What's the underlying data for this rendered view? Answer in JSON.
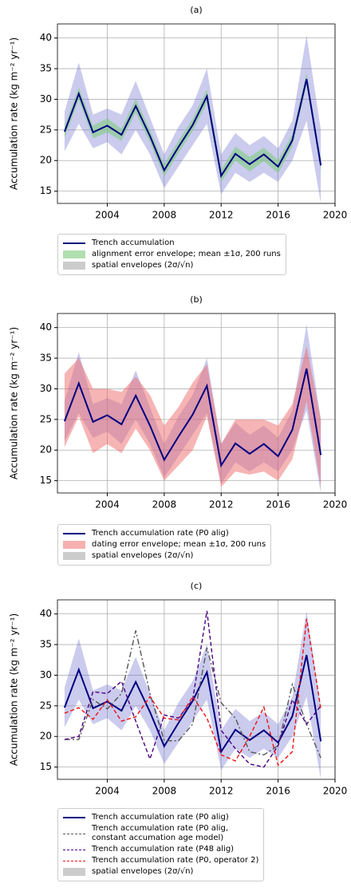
{
  "chart_data": [
    {
      "type": "line",
      "title": "(a)",
      "ylabel": "Accumulation rate (kg m⁻² yr⁻¹)",
      "x": [
        2001,
        2002,
        2003,
        2004,
        2005,
        2006,
        2007,
        2008,
        2009,
        2010,
        2011,
        2012,
        2013,
        2014,
        2015,
        2016,
        2017,
        2018,
        2019
      ],
      "xlim": [
        2000.5,
        2020
      ],
      "xticks": [
        2004,
        2008,
        2012,
        2016,
        2020
      ],
      "ylim": [
        13,
        42.3
      ],
      "yticks": [
        15,
        20,
        25,
        30,
        35,
        40
      ],
      "grid": true,
      "envelopes": [
        {
          "name": "spatial envelopes (2σ/√n)",
          "color": "#6a6acd",
          "opacity": 0.35,
          "legend_color": "#cccccc",
          "upper": [
            28,
            36,
            27.5,
            28.5,
            27.5,
            33,
            27,
            21,
            25.5,
            29,
            35,
            21,
            24.5,
            22.5,
            24,
            22,
            26.5,
            40.5,
            25
          ],
          "lower": [
            21.5,
            26,
            22,
            23,
            21,
            25,
            21,
            15.5,
            19,
            22.5,
            26,
            14.5,
            18,
            16.5,
            18,
            16.5,
            20,
            26.5,
            13
          ]
        },
        {
          "name": "alignment error envelope; mean ±1σ, 200 runs",
          "color": "#7fcf7f",
          "opacity": 0.6,
          "legend_color": "#b0dfb0",
          "upper": [
            25.7,
            31.9,
            25.7,
            26.9,
            25.2,
            30.1,
            25,
            19.4,
            23.2,
            26.8,
            31.6,
            18.5,
            22.3,
            20.6,
            22.1,
            20.1,
            24.3,
            34.3,
            20.2
          ],
          "lower": [
            23.7,
            29.9,
            23.6,
            24.6,
            23.2,
            27.8,
            23,
            17.4,
            21.2,
            24.8,
            29.4,
            16.5,
            20,
            18.2,
            19.9,
            17.9,
            22.3,
            32.3,
            18.2
          ]
        }
      ],
      "series": [
        {
          "name": "Trench accumulation",
          "color": "#000080",
          "style": "solid",
          "values": [
            24.7,
            30.9,
            24.6,
            25.7,
            24.2,
            28.9,
            24.0,
            18.4,
            22.2,
            25.8,
            30.5,
            17.5,
            21.1,
            19.4,
            21.0,
            19.0,
            23.3,
            33.3,
            19.2
          ]
        }
      ]
    },
    {
      "type": "line",
      "title": "(b)",
      "ylabel": "Accumulation rate (kg m⁻² yr⁻¹)",
      "x": [
        2001,
        2002,
        2003,
        2004,
        2005,
        2006,
        2007,
        2008,
        2009,
        2010,
        2011,
        2012,
        2013,
        2014,
        2015,
        2016,
        2017,
        2018,
        2019
      ],
      "xlim": [
        2000.5,
        2020
      ],
      "xticks": [
        2004,
        2008,
        2012,
        2016,
        2020
      ],
      "ylim": [
        13,
        42.3
      ],
      "yticks": [
        15,
        20,
        25,
        30,
        35,
        40
      ],
      "grid": true,
      "envelopes": [
        {
          "name": "spatial envelopes (2σ/√n)",
          "color": "#6a6acd",
          "opacity": 0.35,
          "legend_color": "#cccccc",
          "upper": [
            28,
            36,
            27.5,
            28.5,
            27.5,
            33,
            27,
            21,
            25.5,
            29,
            35,
            21,
            24.5,
            22.5,
            24,
            22,
            26.5,
            40.5,
            25
          ],
          "lower": [
            21.5,
            26,
            22,
            23,
            21,
            25,
            21,
            15.5,
            19,
            22.5,
            26,
            14.5,
            18,
            16.5,
            18,
            16.5,
            20,
            26.5,
            13
          ]
        },
        {
          "name": "dating error envelope; mean ±1σ, 200 runs",
          "color": "#f06a6a",
          "opacity": 0.5,
          "legend_color": "#f6b0b0",
          "upper": [
            32.5,
            35,
            30,
            30,
            29.5,
            32,
            29,
            24,
            27,
            31,
            34,
            21,
            25,
            25,
            25,
            24,
            27.5,
            37,
            25
          ],
          "lower": [
            20.5,
            25.5,
            19.5,
            21,
            19.5,
            23.5,
            20,
            15,
            17.5,
            20,
            25.5,
            14,
            16.5,
            16,
            16.5,
            15,
            18.5,
            28,
            14
          ]
        }
      ],
      "series": [
        {
          "name": "Trench accumulation rate (P0 alig)",
          "color": "#000080",
          "style": "solid",
          "values": [
            24.7,
            30.9,
            24.6,
            25.7,
            24.2,
            28.9,
            24.0,
            18.4,
            22.2,
            25.8,
            30.5,
            17.5,
            21.1,
            19.4,
            21.0,
            19.0,
            23.3,
            33.3,
            19.2
          ]
        }
      ]
    },
    {
      "type": "line",
      "title": "(c)",
      "ylabel": "Accumulation rate (kg m⁻² yr⁻¹)",
      "x": [
        2001,
        2002,
        2003,
        2004,
        2005,
        2006,
        2007,
        2008,
        2009,
        2010,
        2011,
        2012,
        2013,
        2014,
        2015,
        2016,
        2017,
        2018,
        2019
      ],
      "xlim": [
        2000.5,
        2020
      ],
      "xticks": [
        2004,
        2008,
        2012,
        2016,
        2020
      ],
      "ylim": [
        13,
        42.3
      ],
      "yticks": [
        15,
        20,
        25,
        30,
        35,
        40
      ],
      "grid": true,
      "envelopes": [
        {
          "name": "spatial envelopes (2σ/√n)",
          "color": "#6a6acd",
          "opacity": 0.35,
          "legend_color": "#cccccc",
          "upper": [
            28,
            36,
            27.5,
            28.5,
            27.5,
            33,
            27,
            21,
            25.5,
            29,
            35,
            21,
            24.5,
            22.5,
            24,
            22,
            26.5,
            40.5,
            25
          ],
          "lower": [
            21.5,
            26,
            22,
            23,
            21,
            25,
            21,
            15.5,
            19,
            22.5,
            26,
            14.5,
            18,
            16.5,
            18,
            16.5,
            20,
            26.5,
            13
          ]
        }
      ],
      "series": [
        {
          "name": "Trench accumulation rate (P0 alig)",
          "color": "#000080",
          "style": "solid",
          "values": [
            24.7,
            30.9,
            24.6,
            25.7,
            24.2,
            28.9,
            24.0,
            18.4,
            22.2,
            25.8,
            30.5,
            17.5,
            21.1,
            19.4,
            21.0,
            19.0,
            23.3,
            33.3,
            19.2
          ]
        },
        {
          "name": "Trench accumulation rate (P0 alig,\nconstant accumation age model)",
          "color": "#555555",
          "style": "dashdot",
          "values": [
            19.5,
            19.5,
            26,
            24.5,
            27,
            37.3,
            27,
            19.3,
            19.3,
            22,
            34.5,
            25.5,
            23,
            17.5,
            17,
            18.5,
            28.5,
            22,
            16.5
          ]
        },
        {
          "name": "Trench accumulation rate (P48 alig)",
          "color": "#4b0082",
          "style": "dashed",
          "values": [
            19.5,
            20,
            27.3,
            27,
            29,
            22.5,
            16.3,
            23.5,
            23,
            26,
            40.5,
            21,
            18,
            15.5,
            15,
            18.5,
            26,
            22,
            25
          ]
        },
        {
          "name": "Trench accumulation rate (P0, operator 2)",
          "color": "#ee1111",
          "style": "dashed",
          "values": [
            23.8,
            24.7,
            22.8,
            26,
            22.5,
            23.2,
            26.5,
            23,
            22.7,
            26.5,
            23,
            17,
            16,
            20,
            24.8,
            15.3,
            17.5,
            39.2,
            24.5
          ]
        }
      ]
    }
  ]
}
